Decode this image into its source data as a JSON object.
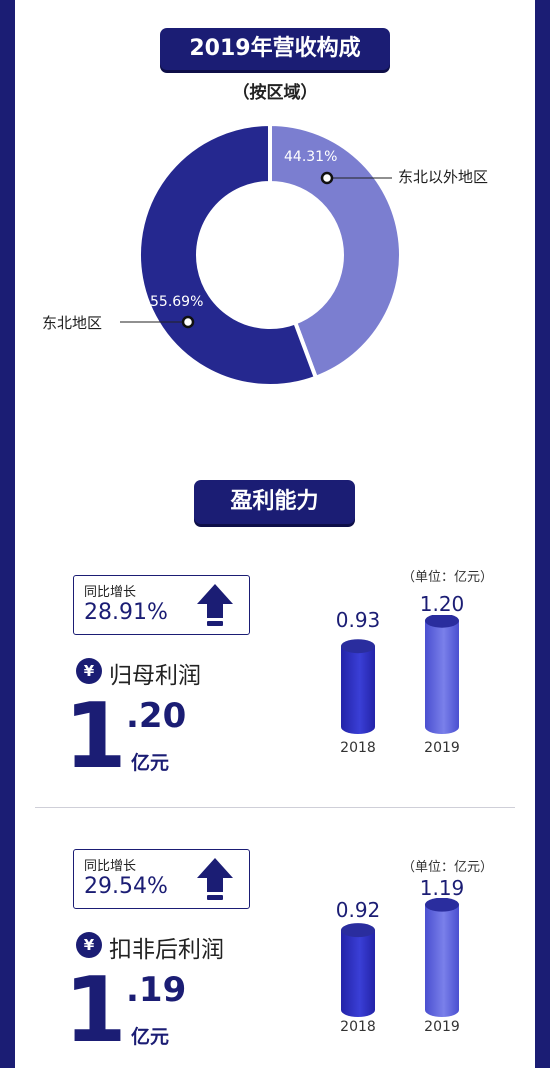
{
  "section1": {
    "title": "2019年营收构成",
    "subtitle": "（按区域）"
  },
  "chart_data": [
    {
      "type": "pie",
      "title": "2019年营收构成",
      "subtitle": "（按区域）",
      "labels": [
        "东北以外地区",
        "东北地区"
      ],
      "values": [
        44.31,
        55.69
      ],
      "value_labels": [
        "44.31%",
        "55.69%"
      ],
      "colors": [
        "#7b7ed0",
        "#25288f"
      ]
    },
    {
      "type": "bar",
      "unit_note": "（单位：亿元）",
      "categories": [
        "2018",
        "2019"
      ],
      "values": [
        0.93,
        1.2
      ],
      "value_labels": [
        "0.93",
        "1.20"
      ]
    },
    {
      "type": "bar",
      "unit_note": "（单位：亿元）",
      "categories": [
        "2018",
        "2019"
      ],
      "values": [
        0.92,
        1.19
      ],
      "value_labels": [
        "0.92",
        "1.19"
      ]
    }
  ],
  "section2": {
    "title": "盈利能力"
  },
  "metrics": [
    {
      "growth_label": "同比增长",
      "growth_value": "28.91%",
      "yen": "¥",
      "name": "归母利润",
      "big_int": "1",
      "big_dec": ".20",
      "unit": "亿元"
    },
    {
      "growth_label": "同比增长",
      "growth_value": "29.54%",
      "yen": "¥",
      "name": "扣非后利润",
      "big_int": "1",
      "big_dec": ".19",
      "unit": "亿元"
    }
  ],
  "colors": {
    "navy": "#1b1d74",
    "donut_dark": "#25288f",
    "donut_light": "#7b7ed0"
  }
}
